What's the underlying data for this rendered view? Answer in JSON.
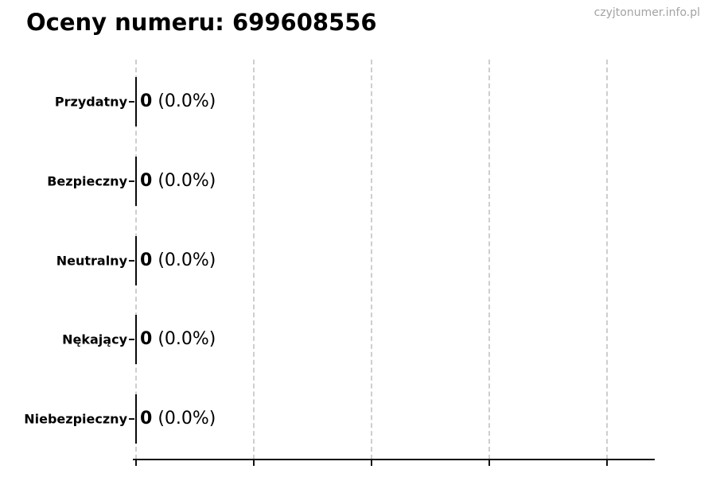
{
  "page": {
    "watermark": "czyjtonumer.info.pl"
  },
  "colors": {
    "text": "#000000",
    "watermark": "#a3a3a3",
    "gridline": "#cecece",
    "axis": "#111111",
    "background": "#ffffff"
  },
  "chart_data": {
    "type": "bar",
    "orientation": "horizontal",
    "title": "Oceny numeru: 699608556",
    "categories": [
      "Przydatny",
      "Bezpieczny",
      "Neutralny",
      "Nękający",
      "Niebezpieczny"
    ],
    "values": [
      0,
      0,
      0,
      0,
      0
    ],
    "value_display": [
      "0",
      "0",
      "0",
      "0",
      "0"
    ],
    "percent_labels": [
      "(0.0%)",
      "(0.0%)",
      "(0.0%)",
      "(0.0%)",
      "(0.0%)"
    ],
    "bar_annotations": [
      "0 (0.0%)",
      "0 (0.0%)",
      "0 (0.0%)",
      "0 (0.0%)",
      "0 (0.0%)"
    ],
    "xlabel": "",
    "ylabel": "",
    "x_tick_labels": [],
    "xlim": [
      0,
      0.044
    ],
    "grid": true,
    "grid_style": "dashed-vertical",
    "legend": false
  }
}
